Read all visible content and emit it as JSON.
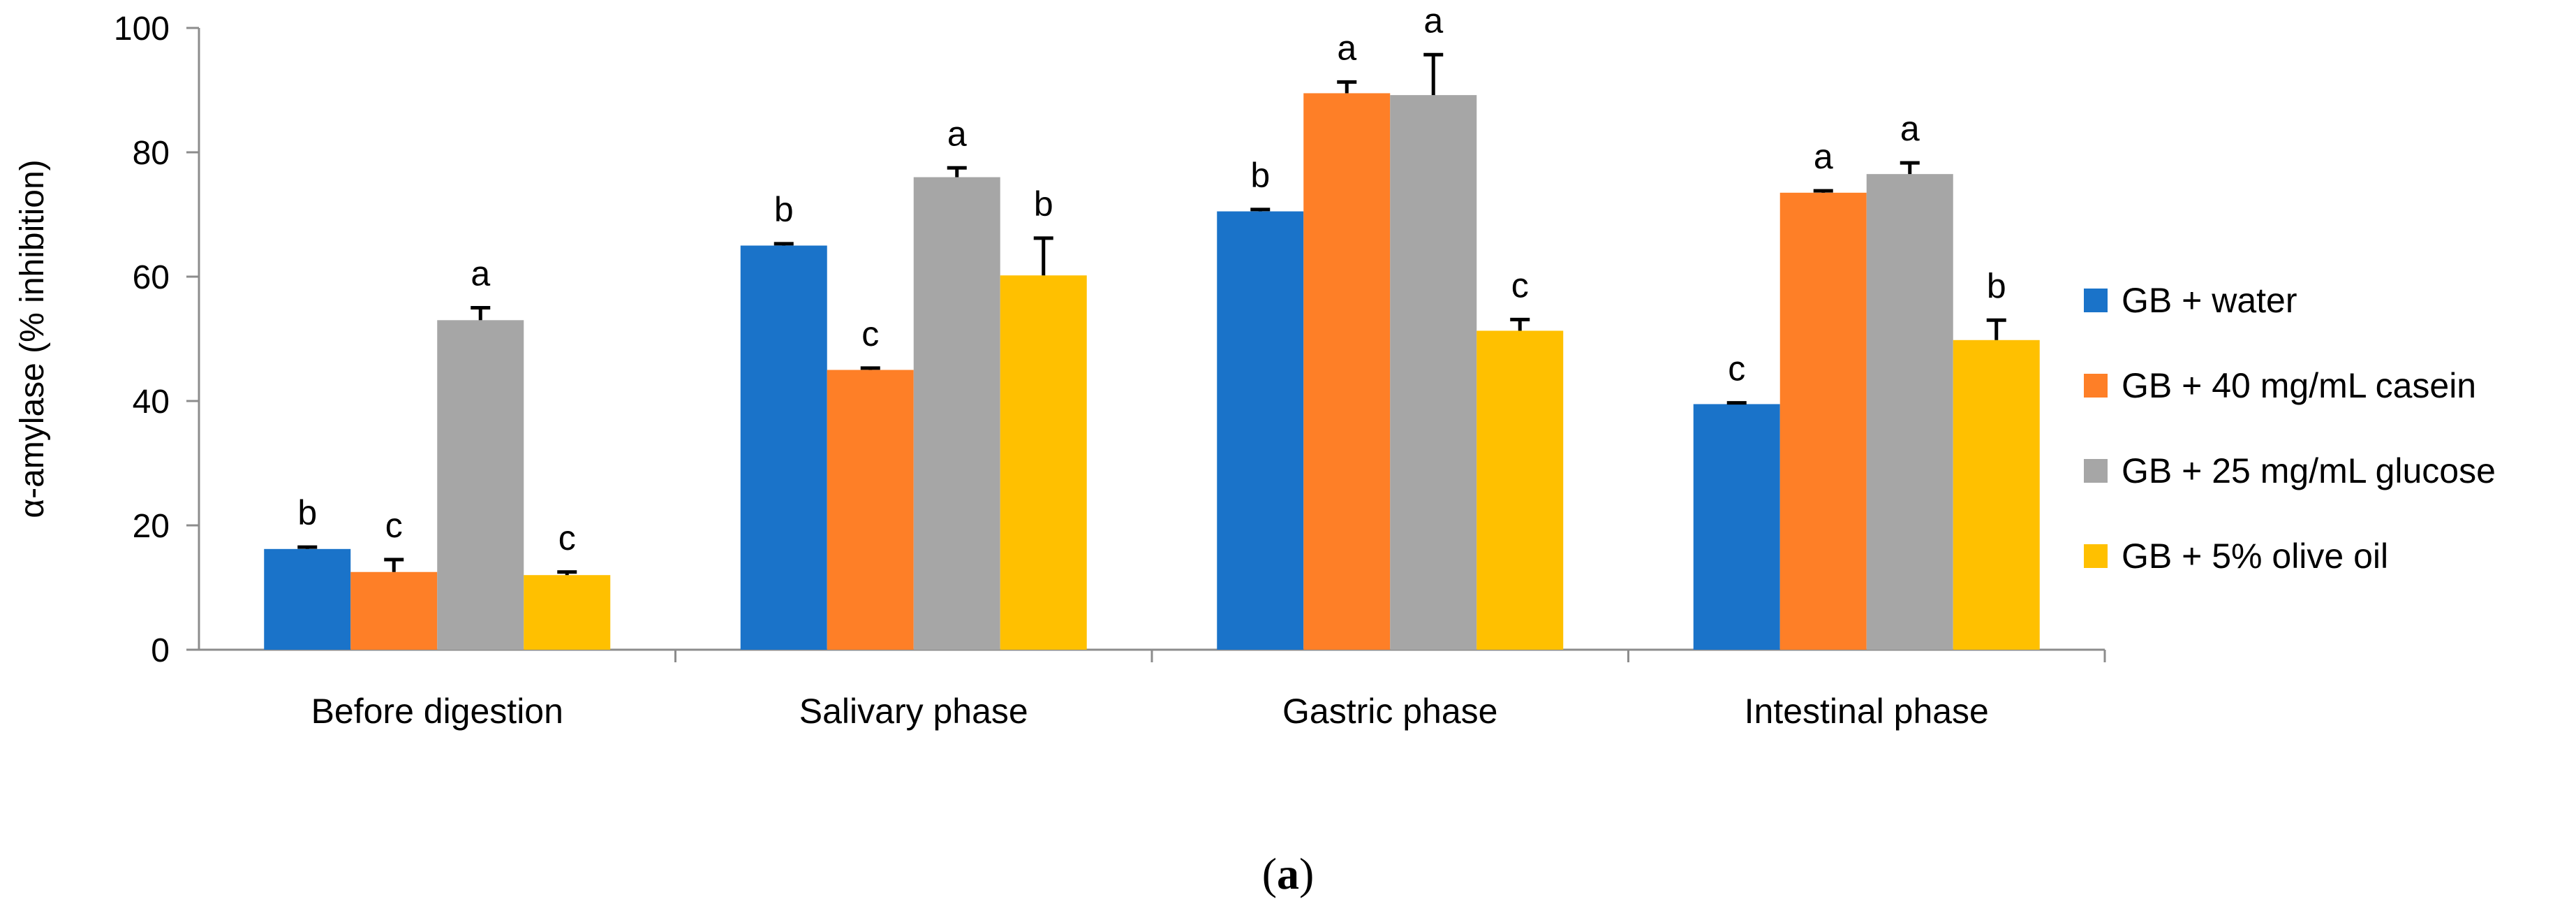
{
  "chart_data": {
    "type": "bar",
    "title": "",
    "xlabel": "",
    "ylabel": "α-amylase (% inhibition)",
    "ylim": [
      0,
      100
    ],
    "yticks": [
      0,
      20,
      40,
      60,
      80,
      100
    ],
    "categories": [
      "Before digestion",
      "Salivary phase",
      "Gastric phase",
      "Intestinal phase"
    ],
    "legend_position": "right",
    "series": [
      {
        "name": "GB + water",
        "color": "#1A73C9",
        "values": [
          16.2,
          65.0,
          70.5,
          39.5
        ],
        "errors": [
          0.3,
          0.3,
          0.3,
          0.2
        ],
        "letters": [
          "b",
          "b",
          "b",
          "c"
        ]
      },
      {
        "name": "GB + 40 mg/mL casein",
        "color": "#FE7F27",
        "values": [
          12.5,
          45.0,
          89.5,
          73.5
        ],
        "errors": [
          2.0,
          0.3,
          1.8,
          0.3
        ],
        "letters": [
          "c",
          "c",
          "a",
          "a"
        ]
      },
      {
        "name": "GB + 25 mg/mL glucose",
        "color": "#A6A6A6",
        "values": [
          53.0,
          76.0,
          89.2,
          76.5
        ],
        "errors": [
          2.0,
          1.5,
          6.5,
          1.8
        ],
        "letters": [
          "a",
          "a",
          "a",
          "a"
        ]
      },
      {
        "name": "GB + 5% olive oil",
        "color": "#FFC000",
        "values": [
          12.0,
          60.2,
          51.3,
          49.8
        ],
        "errors": [
          0.5,
          6.0,
          1.8,
          3.2
        ],
        "letters": [
          "c",
          "b",
          "c",
          "b"
        ]
      }
    ],
    "panel_label": "a"
  }
}
